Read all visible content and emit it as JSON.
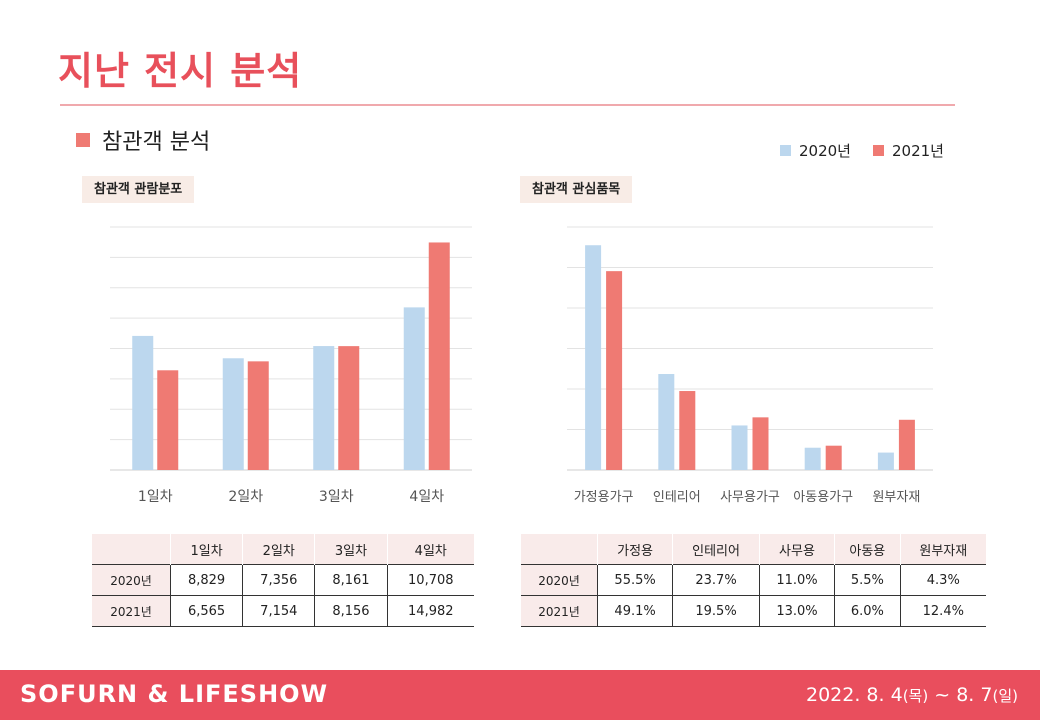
{
  "page": {
    "title": "지난 전시 분석",
    "section_label": "참관객 분석"
  },
  "legend": {
    "s2020": "2020년",
    "s2021": "2021년"
  },
  "colors": {
    "s2020": "#bcd7ee",
    "s2021": "#ef7a73",
    "accent": "#e8505b"
  },
  "chart_data": [
    {
      "type": "bar",
      "title": "참관객 관람분포",
      "categories": [
        "1일차",
        "2일차",
        "3일차",
        "4일차"
      ],
      "series": [
        {
          "name": "2020년",
          "values": [
            8829,
            7356,
            8161,
            10708
          ]
        },
        {
          "name": "2021년",
          "values": [
            6565,
            7154,
            8156,
            14982
          ]
        }
      ],
      "ylim": [
        0,
        16000
      ],
      "grid": true,
      "legend": "top-right"
    },
    {
      "type": "bar",
      "title": "참관객 관심품목",
      "categories": [
        "가정용가구",
        "인테리어",
        "사무용가구",
        "아동용가구",
        "원부자재"
      ],
      "series": [
        {
          "name": "2020년",
          "values": [
            55.5,
            23.7,
            11.0,
            5.5,
            4.3
          ]
        },
        {
          "name": "2021년",
          "values": [
            49.1,
            19.5,
            13.0,
            6.0,
            12.4
          ]
        }
      ],
      "ylim": [
        0,
        60
      ],
      "grid": true,
      "legend": "top-right"
    }
  ],
  "table_left": {
    "headers": [
      "1일차",
      "2일차",
      "3일차",
      "4일차"
    ],
    "rows": [
      {
        "label": "2020년",
        "cells": [
          "8,829",
          "7,356",
          "8,161",
          "10,708"
        ]
      },
      {
        "label": "2021년",
        "cells": [
          "6,565",
          "7,154",
          "8,156",
          "14,982"
        ]
      }
    ]
  },
  "table_right": {
    "headers": [
      "가정용",
      "인테리어",
      "사무용",
      "아동용",
      "원부자재"
    ],
    "rows": [
      {
        "label": "2020년",
        "cells": [
          "55.5%",
          "23.7%",
          "11.0%",
          "5.5%",
          "4.3%"
        ]
      },
      {
        "label": "2021년",
        "cells": [
          "49.1%",
          "19.5%",
          "13.0%",
          "6.0%",
          "12.4%"
        ]
      }
    ]
  },
  "footer": {
    "brand": "SOFURN & LIFESHOW",
    "date_a": "2022. 8. 4",
    "day_a": "(목)",
    "date_sep": " ~ 8. 7",
    "day_b": "(일)"
  }
}
